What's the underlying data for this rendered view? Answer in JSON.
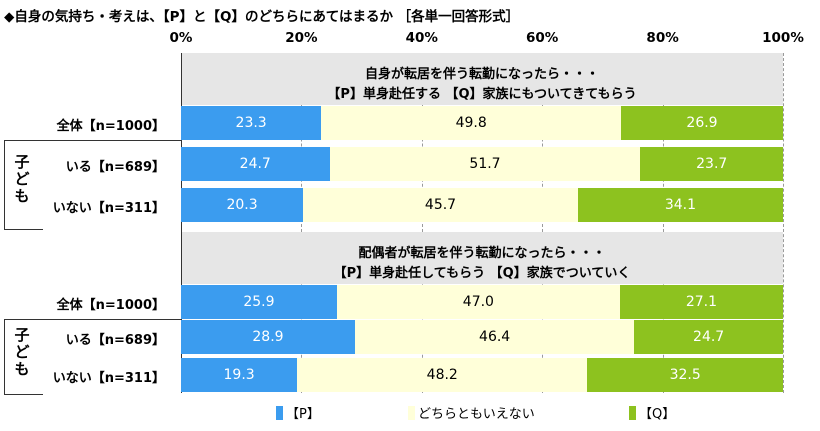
{
  "title": "◆自身の気持ち・考えは、【P】と【Q】のどちらにあてはまるか ［各単一回答形式］",
  "legend": {
    "p": "【P】",
    "mid": "どちらともいえない",
    "q": "【Q】"
  },
  "group_label": "子ども",
  "colors": {
    "p": "#3b9cef",
    "mid": "#ffffd9",
    "q": "#8dc21f",
    "qbox": "#e6e6e6"
  },
  "questions": [
    {
      "line1": "自身が転居を伴う転勤になったら・・・",
      "line2": "【P】単身赴任する 【Q】家族にもついてきてもらう"
    },
    {
      "line1": "配偶者が転居を伴う転勤になったら・・・",
      "line2": "【P】単身赴任してもらう 【Q】家族でついていく"
    }
  ],
  "chart_data": {
    "type": "bar",
    "stacked": "horizontal-100%",
    "xlim": [
      0,
      100
    ],
    "ticks": [
      "0%",
      "20%",
      "40%",
      "60%",
      "80%",
      "100%"
    ],
    "categories": [
      "全体【n=1000】",
      "いる【n=689】",
      "いない【n=311】",
      "全体【n=1000】",
      "いる【n=689】",
      "いない【n=311】"
    ],
    "series": [
      {
        "name": "【P】",
        "values": [
          23.3,
          24.7,
          20.3,
          25.9,
          28.9,
          19.3
        ]
      },
      {
        "name": "どちらともいえない",
        "values": [
          49.8,
          51.7,
          45.7,
          47.0,
          46.4,
          48.2
        ]
      },
      {
        "name": "【Q】",
        "values": [
          26.9,
          23.7,
          34.1,
          27.1,
          24.7,
          32.5
        ]
      }
    ],
    "value_labels": [
      [
        "23.3",
        "49.8",
        "26.9"
      ],
      [
        "24.7",
        "51.7",
        "23.7"
      ],
      [
        "20.3",
        "45.7",
        "34.1"
      ],
      [
        "25.9",
        "47.0",
        "27.1"
      ],
      [
        "28.9",
        "46.4",
        "24.7"
      ],
      [
        "19.3",
        "48.2",
        "32.5"
      ]
    ],
    "grid": true,
    "legend_position": "bottom"
  }
}
